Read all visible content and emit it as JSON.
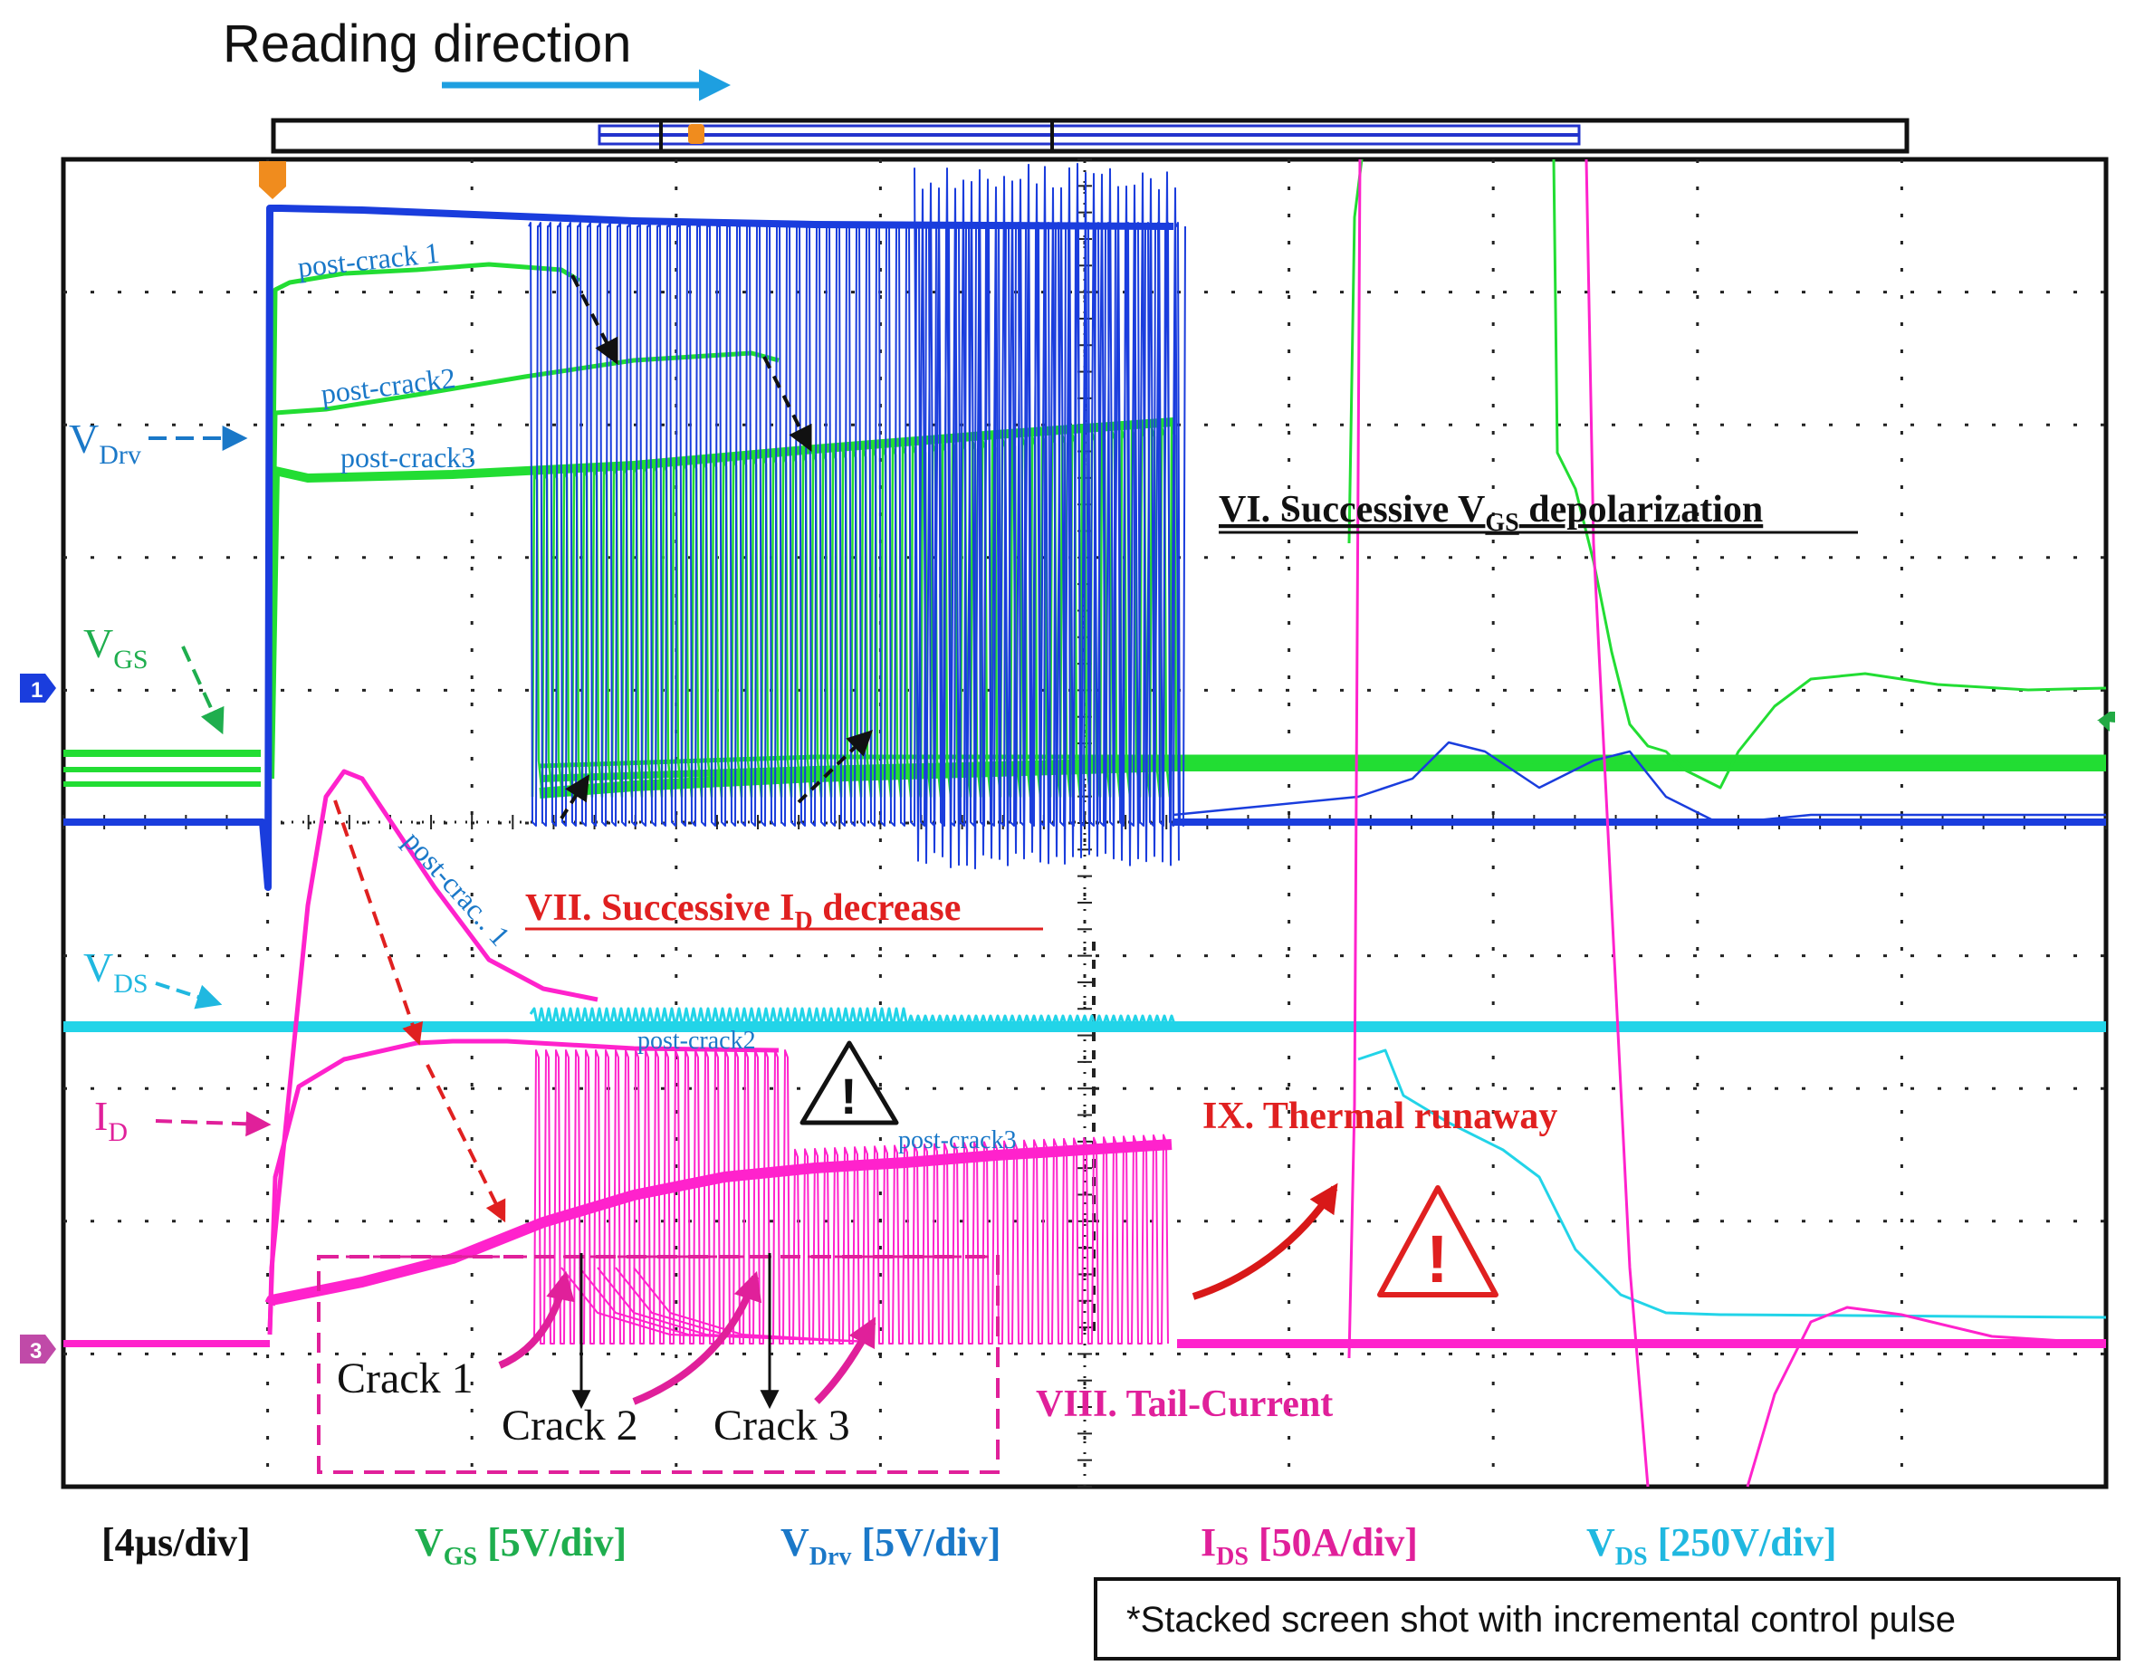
{
  "header": {
    "reading_direction": "Reading direction"
  },
  "channel_markers": {
    "ch1": "1",
    "ch3": "3"
  },
  "signal_labels": {
    "vdrv": {
      "main": "V",
      "sub": "Drv"
    },
    "vgs": {
      "main": "V",
      "sub": "GS"
    },
    "vds": {
      "main": "V",
      "sub": "DS"
    },
    "id": {
      "main": "I",
      "sub": "D"
    }
  },
  "trace_labels": {
    "vgs_post_crack1": "post-crack 1",
    "vgs_post_crack2": "post-crack2",
    "vgs_post_crack3": "post-crack3",
    "id_post_crack1": "post-crac.. 1",
    "id_post_crack2": "post-crack2",
    "id_post_crack3": "post-crack3"
  },
  "annotations": {
    "vi": {
      "prefix": "VI. Successive V",
      "sub": "GS",
      "suffix": " depolarization"
    },
    "vii": {
      "prefix": "VII. Successive I",
      "sub": "D",
      "suffix": " decrease"
    },
    "viii": "VIII. Tail-Current",
    "ix": "IX. Thermal runaway",
    "crack1": "Crack  1",
    "crack2": "Crack  2",
    "crack3": "Crack  3",
    "warning_mark": "!"
  },
  "scales": {
    "time": "[4µs/div]",
    "vgs": {
      "main": "V",
      "sub": "GS",
      "rest": " [5V/div]"
    },
    "vdrv": {
      "main": "V",
      "sub": "Drv",
      "rest": " [5V/div]"
    },
    "ids": {
      "main": "I",
      "sub": "DS",
      "rest": " [50A/div]"
    },
    "vds": {
      "main": "V",
      "sub": "DS",
      "rest": " [250V/div]"
    }
  },
  "footnote": "*Stacked screen shot with incremental control pulse",
  "colors": {
    "vgs": "#22dd33",
    "vdrv": "#1a3ddd",
    "id": "#ff22cc",
    "vds": "#22d4e8",
    "label_blue": "#1a78c8",
    "label_green": "#1fae4e",
    "label_magenta": "#e0209a",
    "label_cyan": "#20b8e0",
    "red": "#e02020",
    "marker_orange": "#f08c1e"
  },
  "chart_data": {
    "type": "line",
    "title": "",
    "xlabel": "[4µs/div]",
    "divisions": {
      "x": 10,
      "y": 10
    },
    "time_per_div_us": 4,
    "series": [
      {
        "name": "VGS",
        "scale": "5V/div",
        "traces": [
          "post-crack 1",
          "post-crack2",
          "post-crack3"
        ]
      },
      {
        "name": "VDrv",
        "scale": "5V/div"
      },
      {
        "name": "IDS",
        "scale": "50A/div",
        "traces": [
          "post-crac.. 1",
          "post-crack2",
          "post-crack3"
        ]
      },
      {
        "name": "VDS",
        "scale": "250V/div"
      }
    ]
  }
}
